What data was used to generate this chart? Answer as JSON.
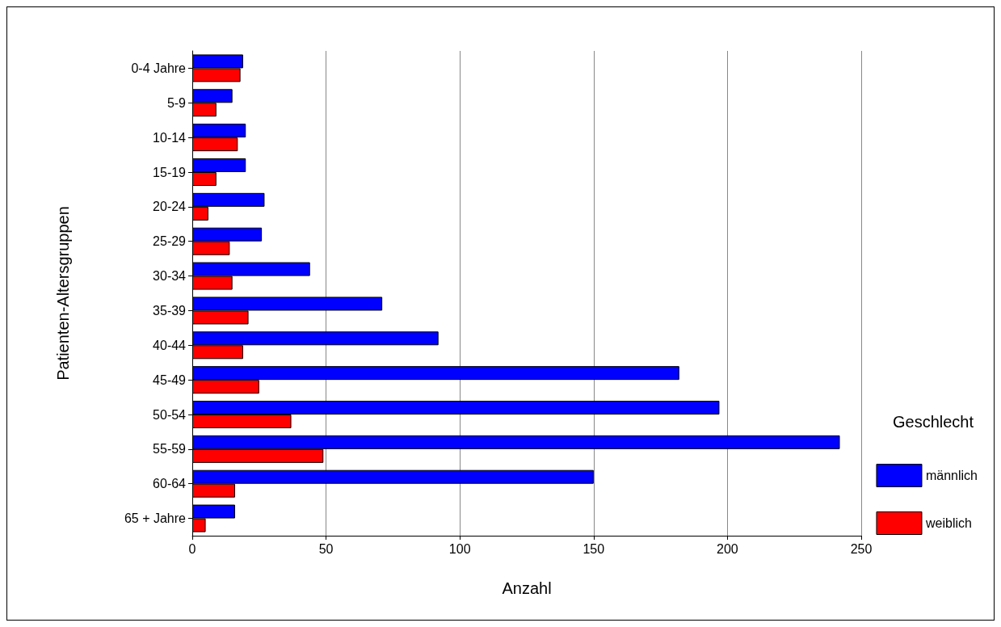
{
  "chart_data": {
    "type": "bar",
    "orientation": "horizontal",
    "xlabel": "Anzahl",
    "ylabel": "Patienten-Altersgruppen",
    "legend_title": "Geschlecht",
    "categories": [
      "0-4 Jahre",
      "5-9",
      "10-14",
      "15-19",
      "20-24",
      "25-29",
      "30-34",
      "35-39",
      "40-44",
      "45-49",
      "50-54",
      "55-59",
      "60-64",
      "65 + Jahre"
    ],
    "series": [
      {
        "name": "männlich",
        "color": "#0000ff",
        "values": [
          19,
          15,
          20,
          20,
          27,
          26,
          44,
          71,
          92,
          182,
          197,
          242,
          150,
          16
        ]
      },
      {
        "name": "weiblich",
        "color": "#ff0000",
        "values": [
          18,
          9,
          17,
          9,
          6,
          14,
          15,
          21,
          19,
          25,
          37,
          49,
          16,
          5
        ]
      }
    ],
    "xlim": [
      0,
      250
    ],
    "xticks": [
      0,
      50,
      100,
      150,
      200,
      250
    ],
    "grid": "x",
    "legend": "right"
  }
}
